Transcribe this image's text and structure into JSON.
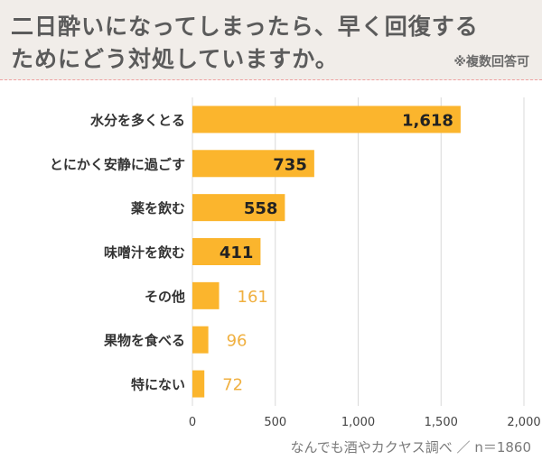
{
  "header": {
    "title_line1": "二日酔いになってしまったら、早く回復する",
    "title_line2": "ためにどう対処していますか。",
    "note": "※複数回答可"
  },
  "source": "なんでも酒やカクヤス調べ ／ n＝1860",
  "colors": {
    "bar": "#fbb52d",
    "label_inside": "#222222",
    "label_outside": "#f0b040",
    "grid": "#d9d9d9",
    "category_text": "#333333",
    "header_bg": "#f1ede9"
  },
  "chart_data": {
    "type": "bar",
    "orientation": "horizontal",
    "categories": [
      "水分を多くとる",
      "とにかく安静に過ごす",
      "薬を飲む",
      "味噌汁を飲む",
      "その他",
      "果物を食べる",
      "特にない"
    ],
    "values": [
      1618,
      735,
      558,
      411,
      161,
      96,
      72
    ],
    "value_labels": [
      "1,618",
      "735",
      "558",
      "411",
      "161",
      "96",
      "72"
    ],
    "xlim": [
      0,
      2000
    ],
    "xticks": [
      0,
      500,
      1000,
      1500,
      2000
    ],
    "xtick_labels": [
      "0",
      "500",
      "1,000",
      "1,500",
      "2,000"
    ],
    "grid": true
  }
}
